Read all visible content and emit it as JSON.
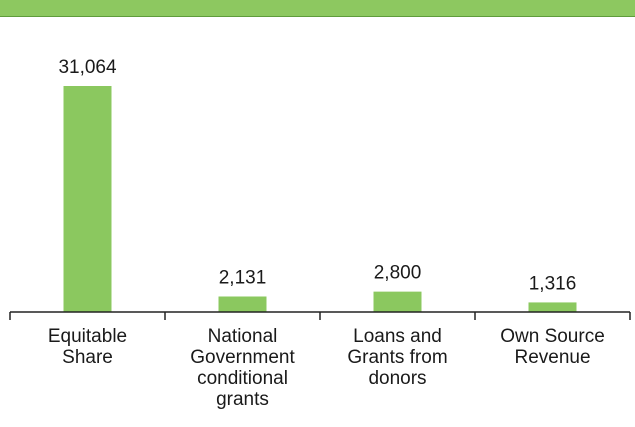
{
  "colors": {
    "bar": "#8bc85f",
    "header_band": "#8dc860",
    "text": "#1a1a1a",
    "axis": "#222222"
  },
  "chart_data": {
    "type": "bar",
    "categories": [
      "Equitable Share",
      "National Government conditional grants",
      "Loans and Grants from donors",
      "Own Source Revenue"
    ],
    "category_lines": [
      [
        "Equitable",
        "Share"
      ],
      [
        "National",
        "Government",
        "conditional",
        "grants"
      ],
      [
        "Loans and",
        "Grants from",
        "donors"
      ],
      [
        "Own Source",
        "Revenue"
      ]
    ],
    "values": [
      31064,
      2131,
      2800,
      1316
    ],
    "value_labels": [
      "31,064",
      "2,131",
      "2,800",
      "1,316"
    ],
    "title": "",
    "xlabel": "",
    "ylabel": "",
    "ylim": [
      0,
      31064
    ],
    "grid": false,
    "legend": "none"
  }
}
